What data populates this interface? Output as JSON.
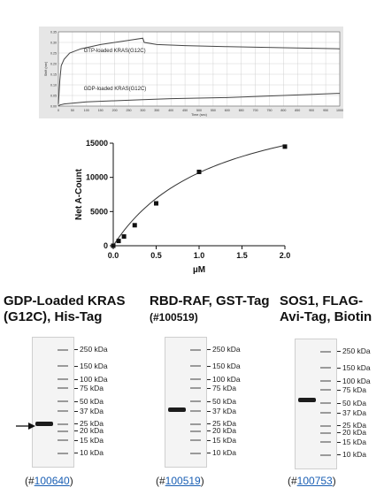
{
  "chart_data": [
    {
      "type": "line",
      "title": "",
      "xlabel": "Time (sec)",
      "ylabel": "Shift (nm)",
      "xlim": [
        0,
        1000
      ],
      "ylim": [
        0,
        0.35
      ],
      "x_ticks": [
        0,
        50,
        100,
        150,
        200,
        250,
        300,
        350,
        400,
        450,
        500,
        550,
        600,
        650,
        700,
        750,
        800,
        850,
        900,
        950,
        1000
      ],
      "y_ticks": [
        0,
        0.05,
        0.1,
        0.15,
        0.2,
        0.25,
        0.3,
        0.35
      ],
      "grid": true,
      "series": [
        {
          "name": "GTP-loaded KRAS(G12C)",
          "x": [
            0,
            5,
            10,
            20,
            40,
            80,
            150,
            250,
            300,
            305,
            350,
            450,
            600,
            800,
            1000
          ],
          "values": [
            0.01,
            0.12,
            0.19,
            0.22,
            0.25,
            0.27,
            0.29,
            0.31,
            0.32,
            0.3,
            0.29,
            0.285,
            0.28,
            0.275,
            0.27
          ]
        },
        {
          "name": "GDP-loaded KRAS(G12C)",
          "x": [
            0,
            5,
            20,
            100,
            200,
            300,
            400,
            600,
            800,
            1000
          ],
          "values": [
            0.0,
            0.005,
            0.01,
            0.02,
            0.025,
            0.03,
            0.035,
            0.04,
            0.05,
            0.06
          ]
        }
      ]
    },
    {
      "type": "scatter",
      "title": "",
      "xlabel": "µM",
      "ylabel": "Net A-Count",
      "xlim": [
        0,
        2.0
      ],
      "ylim": [
        0,
        15000
      ],
      "x_ticks": [
        "0.0",
        "0.5",
        "1.0",
        "1.5",
        "2.0"
      ],
      "y_ticks": [
        "0",
        "5000",
        "10000",
        "15000"
      ],
      "series": [
        {
          "name": "",
          "x": [
            0.0,
            0.0625,
            0.125,
            0.25,
            0.5,
            1.0,
            2.0
          ],
          "values": [
            0,
            700,
            1350,
            3000,
            6200,
            10800,
            14500
          ]
        }
      ]
    }
  ],
  "gels": [
    {
      "title": "GDP-Loaded KRAS (G12C), His-Tag",
      "catalog": "100640",
      "band_kda": 25,
      "markers": [
        "250 kDa",
        "150 kDa",
        "100 kDa",
        "75 kDa",
        "50 kDa",
        "37 kDa",
        "25 kDa",
        "20 kDa",
        "15 kDa",
        "10 kDa"
      ]
    },
    {
      "title_main": "RBD-RAF, GST-Tag",
      "title_cat": "(#100519)",
      "catalog": "100519",
      "band_kda": 39,
      "markers": [
        "250 kDa",
        "150 kDa",
        "100 kDa",
        "75 kDa",
        "50 kDa",
        "37 kDa",
        "25 kDa",
        "20 kDa",
        "15 kDa",
        "10 kDa"
      ]
    },
    {
      "title": "SOS1, FLAG-Avi-Tag, Biotin",
      "catalog": "100753",
      "band_kda": 55,
      "markers": [
        "250 kDa",
        "150 kDa",
        "100 kDa",
        "75 kDa",
        "50 kDa",
        "37 kDa",
        "25 kDa",
        "20 kDa",
        "15 kDa",
        "10 kDa"
      ]
    }
  ],
  "colors": {
    "link": "#1a5fb4",
    "trace": "#444444",
    "grid": "#c8c8c8"
  }
}
